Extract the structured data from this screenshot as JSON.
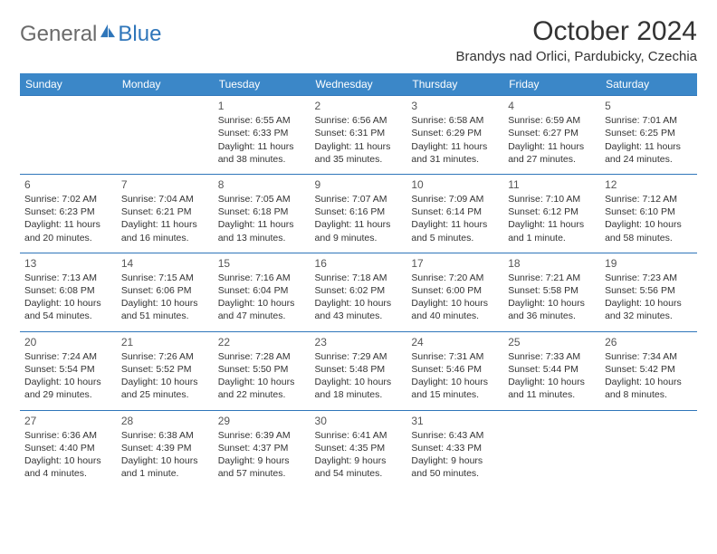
{
  "logo": {
    "text1": "General",
    "text2": "Blue"
  },
  "title": "October 2024",
  "location": "Brandys nad Orlici, Pardubicky, Czechia",
  "days_of_week": [
    "Sunday",
    "Monday",
    "Tuesday",
    "Wednesday",
    "Thursday",
    "Friday",
    "Saturday"
  ],
  "colors": {
    "header_bg": "#3b87c8",
    "border": "#2f76ba",
    "logo_gray": "#6b6b6b",
    "logo_blue": "#2f76ba",
    "text": "#333333",
    "bg": "#ffffff"
  },
  "typography": {
    "title_fontsize": 30,
    "location_fontsize": 15,
    "header_fontsize": 12,
    "cell_fontsize": 10.5,
    "daynum_fontsize": 12
  },
  "weeks": [
    [
      null,
      null,
      {
        "n": "1",
        "sunrise": "6:55 AM",
        "sunset": "6:33 PM",
        "daylight": "11 hours and 38 minutes."
      },
      {
        "n": "2",
        "sunrise": "6:56 AM",
        "sunset": "6:31 PM",
        "daylight": "11 hours and 35 minutes."
      },
      {
        "n": "3",
        "sunrise": "6:58 AM",
        "sunset": "6:29 PM",
        "daylight": "11 hours and 31 minutes."
      },
      {
        "n": "4",
        "sunrise": "6:59 AM",
        "sunset": "6:27 PM",
        "daylight": "11 hours and 27 minutes."
      },
      {
        "n": "5",
        "sunrise": "7:01 AM",
        "sunset": "6:25 PM",
        "daylight": "11 hours and 24 minutes."
      }
    ],
    [
      {
        "n": "6",
        "sunrise": "7:02 AM",
        "sunset": "6:23 PM",
        "daylight": "11 hours and 20 minutes."
      },
      {
        "n": "7",
        "sunrise": "7:04 AM",
        "sunset": "6:21 PM",
        "daylight": "11 hours and 16 minutes."
      },
      {
        "n": "8",
        "sunrise": "7:05 AM",
        "sunset": "6:18 PM",
        "daylight": "11 hours and 13 minutes."
      },
      {
        "n": "9",
        "sunrise": "7:07 AM",
        "sunset": "6:16 PM",
        "daylight": "11 hours and 9 minutes."
      },
      {
        "n": "10",
        "sunrise": "7:09 AM",
        "sunset": "6:14 PM",
        "daylight": "11 hours and 5 minutes."
      },
      {
        "n": "11",
        "sunrise": "7:10 AM",
        "sunset": "6:12 PM",
        "daylight": "11 hours and 1 minute."
      },
      {
        "n": "12",
        "sunrise": "7:12 AM",
        "sunset": "6:10 PM",
        "daylight": "10 hours and 58 minutes."
      }
    ],
    [
      {
        "n": "13",
        "sunrise": "7:13 AM",
        "sunset": "6:08 PM",
        "daylight": "10 hours and 54 minutes."
      },
      {
        "n": "14",
        "sunrise": "7:15 AM",
        "sunset": "6:06 PM",
        "daylight": "10 hours and 51 minutes."
      },
      {
        "n": "15",
        "sunrise": "7:16 AM",
        "sunset": "6:04 PM",
        "daylight": "10 hours and 47 minutes."
      },
      {
        "n": "16",
        "sunrise": "7:18 AM",
        "sunset": "6:02 PM",
        "daylight": "10 hours and 43 minutes."
      },
      {
        "n": "17",
        "sunrise": "7:20 AM",
        "sunset": "6:00 PM",
        "daylight": "10 hours and 40 minutes."
      },
      {
        "n": "18",
        "sunrise": "7:21 AM",
        "sunset": "5:58 PM",
        "daylight": "10 hours and 36 minutes."
      },
      {
        "n": "19",
        "sunrise": "7:23 AM",
        "sunset": "5:56 PM",
        "daylight": "10 hours and 32 minutes."
      }
    ],
    [
      {
        "n": "20",
        "sunrise": "7:24 AM",
        "sunset": "5:54 PM",
        "daylight": "10 hours and 29 minutes."
      },
      {
        "n": "21",
        "sunrise": "7:26 AM",
        "sunset": "5:52 PM",
        "daylight": "10 hours and 25 minutes."
      },
      {
        "n": "22",
        "sunrise": "7:28 AM",
        "sunset": "5:50 PM",
        "daylight": "10 hours and 22 minutes."
      },
      {
        "n": "23",
        "sunrise": "7:29 AM",
        "sunset": "5:48 PM",
        "daylight": "10 hours and 18 minutes."
      },
      {
        "n": "24",
        "sunrise": "7:31 AM",
        "sunset": "5:46 PM",
        "daylight": "10 hours and 15 minutes."
      },
      {
        "n": "25",
        "sunrise": "7:33 AM",
        "sunset": "5:44 PM",
        "daylight": "10 hours and 11 minutes."
      },
      {
        "n": "26",
        "sunrise": "7:34 AM",
        "sunset": "5:42 PM",
        "daylight": "10 hours and 8 minutes."
      }
    ],
    [
      {
        "n": "27",
        "sunrise": "6:36 AM",
        "sunset": "4:40 PM",
        "daylight": "10 hours and 4 minutes."
      },
      {
        "n": "28",
        "sunrise": "6:38 AM",
        "sunset": "4:39 PM",
        "daylight": "10 hours and 1 minute."
      },
      {
        "n": "29",
        "sunrise": "6:39 AM",
        "sunset": "4:37 PM",
        "daylight": "9 hours and 57 minutes."
      },
      {
        "n": "30",
        "sunrise": "6:41 AM",
        "sunset": "4:35 PM",
        "daylight": "9 hours and 54 minutes."
      },
      {
        "n": "31",
        "sunrise": "6:43 AM",
        "sunset": "4:33 PM",
        "daylight": "9 hours and 50 minutes."
      },
      null,
      null
    ]
  ],
  "labels": {
    "sunrise": "Sunrise:",
    "sunset": "Sunset:",
    "daylight": "Daylight:"
  }
}
